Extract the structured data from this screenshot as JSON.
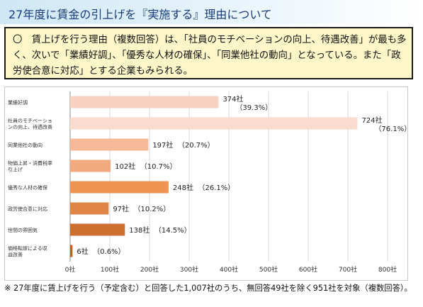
{
  "title": "27年度に賃金の引上げを『実施する』理由について",
  "summary": "〇　賃上げを行う理由（複数回答）は、「社員のモチベーションの向上、待遇改善」が最も多く、次いで「業績好調」、「優秀な人材の確保」、「同業他社の動向」となっている。また「政労使合意に対応」とする企業もみられる。",
  "footnote": "※ 27年度に賃上げを行う（予定含む）と回答した1,007社のうち、無回答49社を除く951社を対象（複数回答）。",
  "chart_data": {
    "type": "bar",
    "orientation": "horizontal",
    "xlim": [
      0,
      800
    ],
    "ticks": [
      "0社",
      "100社",
      "200社",
      "300社",
      "400社",
      "500社",
      "600社",
      "700社",
      "800社"
    ],
    "tick_values": [
      0,
      100,
      200,
      300,
      400,
      500,
      600,
      700,
      800
    ],
    "grid": true,
    "categories": [
      {
        "label": [
          "業績好調"
        ],
        "value": 374,
        "value_label": "374社",
        "pct_label": "（39.3%）",
        "color": "#f7d2c0"
      },
      {
        "label": [
          "社員のモチベーショ",
          "ンの向上、待遇改善"
        ],
        "value": 724,
        "value_label": "724社",
        "pct_label": "（76.1%）",
        "color": "#f9dccd"
      },
      {
        "label": [
          "同業他社の動向"
        ],
        "value": 197,
        "value_label": "197社",
        "pct_label": "（20.7%）",
        "color": "#f5b898"
      },
      {
        "label": [
          "物価上昇・消費税率",
          "引上げ"
        ],
        "value": 102,
        "value_label": "102社",
        "pct_label": "（10.7%）",
        "color": "#f2a97e"
      },
      {
        "label": [
          "優秀な人材の確保"
        ],
        "value": 248,
        "value_label": "248社",
        "pct_label": "（26.1%）",
        "color": "#ee9450"
      },
      {
        "label": [
          "政労使合意に対応"
        ],
        "value": 97,
        "value_label": "97社",
        "pct_label": "（10.2%）",
        "color": "#df8545"
      },
      {
        "label": [
          "世間の雰囲気"
        ],
        "value": 138,
        "value_label": "138社",
        "pct_label": "（14.5%）",
        "color": "#cd6f2f"
      },
      {
        "label": [
          "価格転嫁による収",
          "益改善"
        ],
        "value": 6,
        "value_label": "6社",
        "pct_label": "（0.6%）",
        "color": "#bf6020"
      }
    ]
  }
}
